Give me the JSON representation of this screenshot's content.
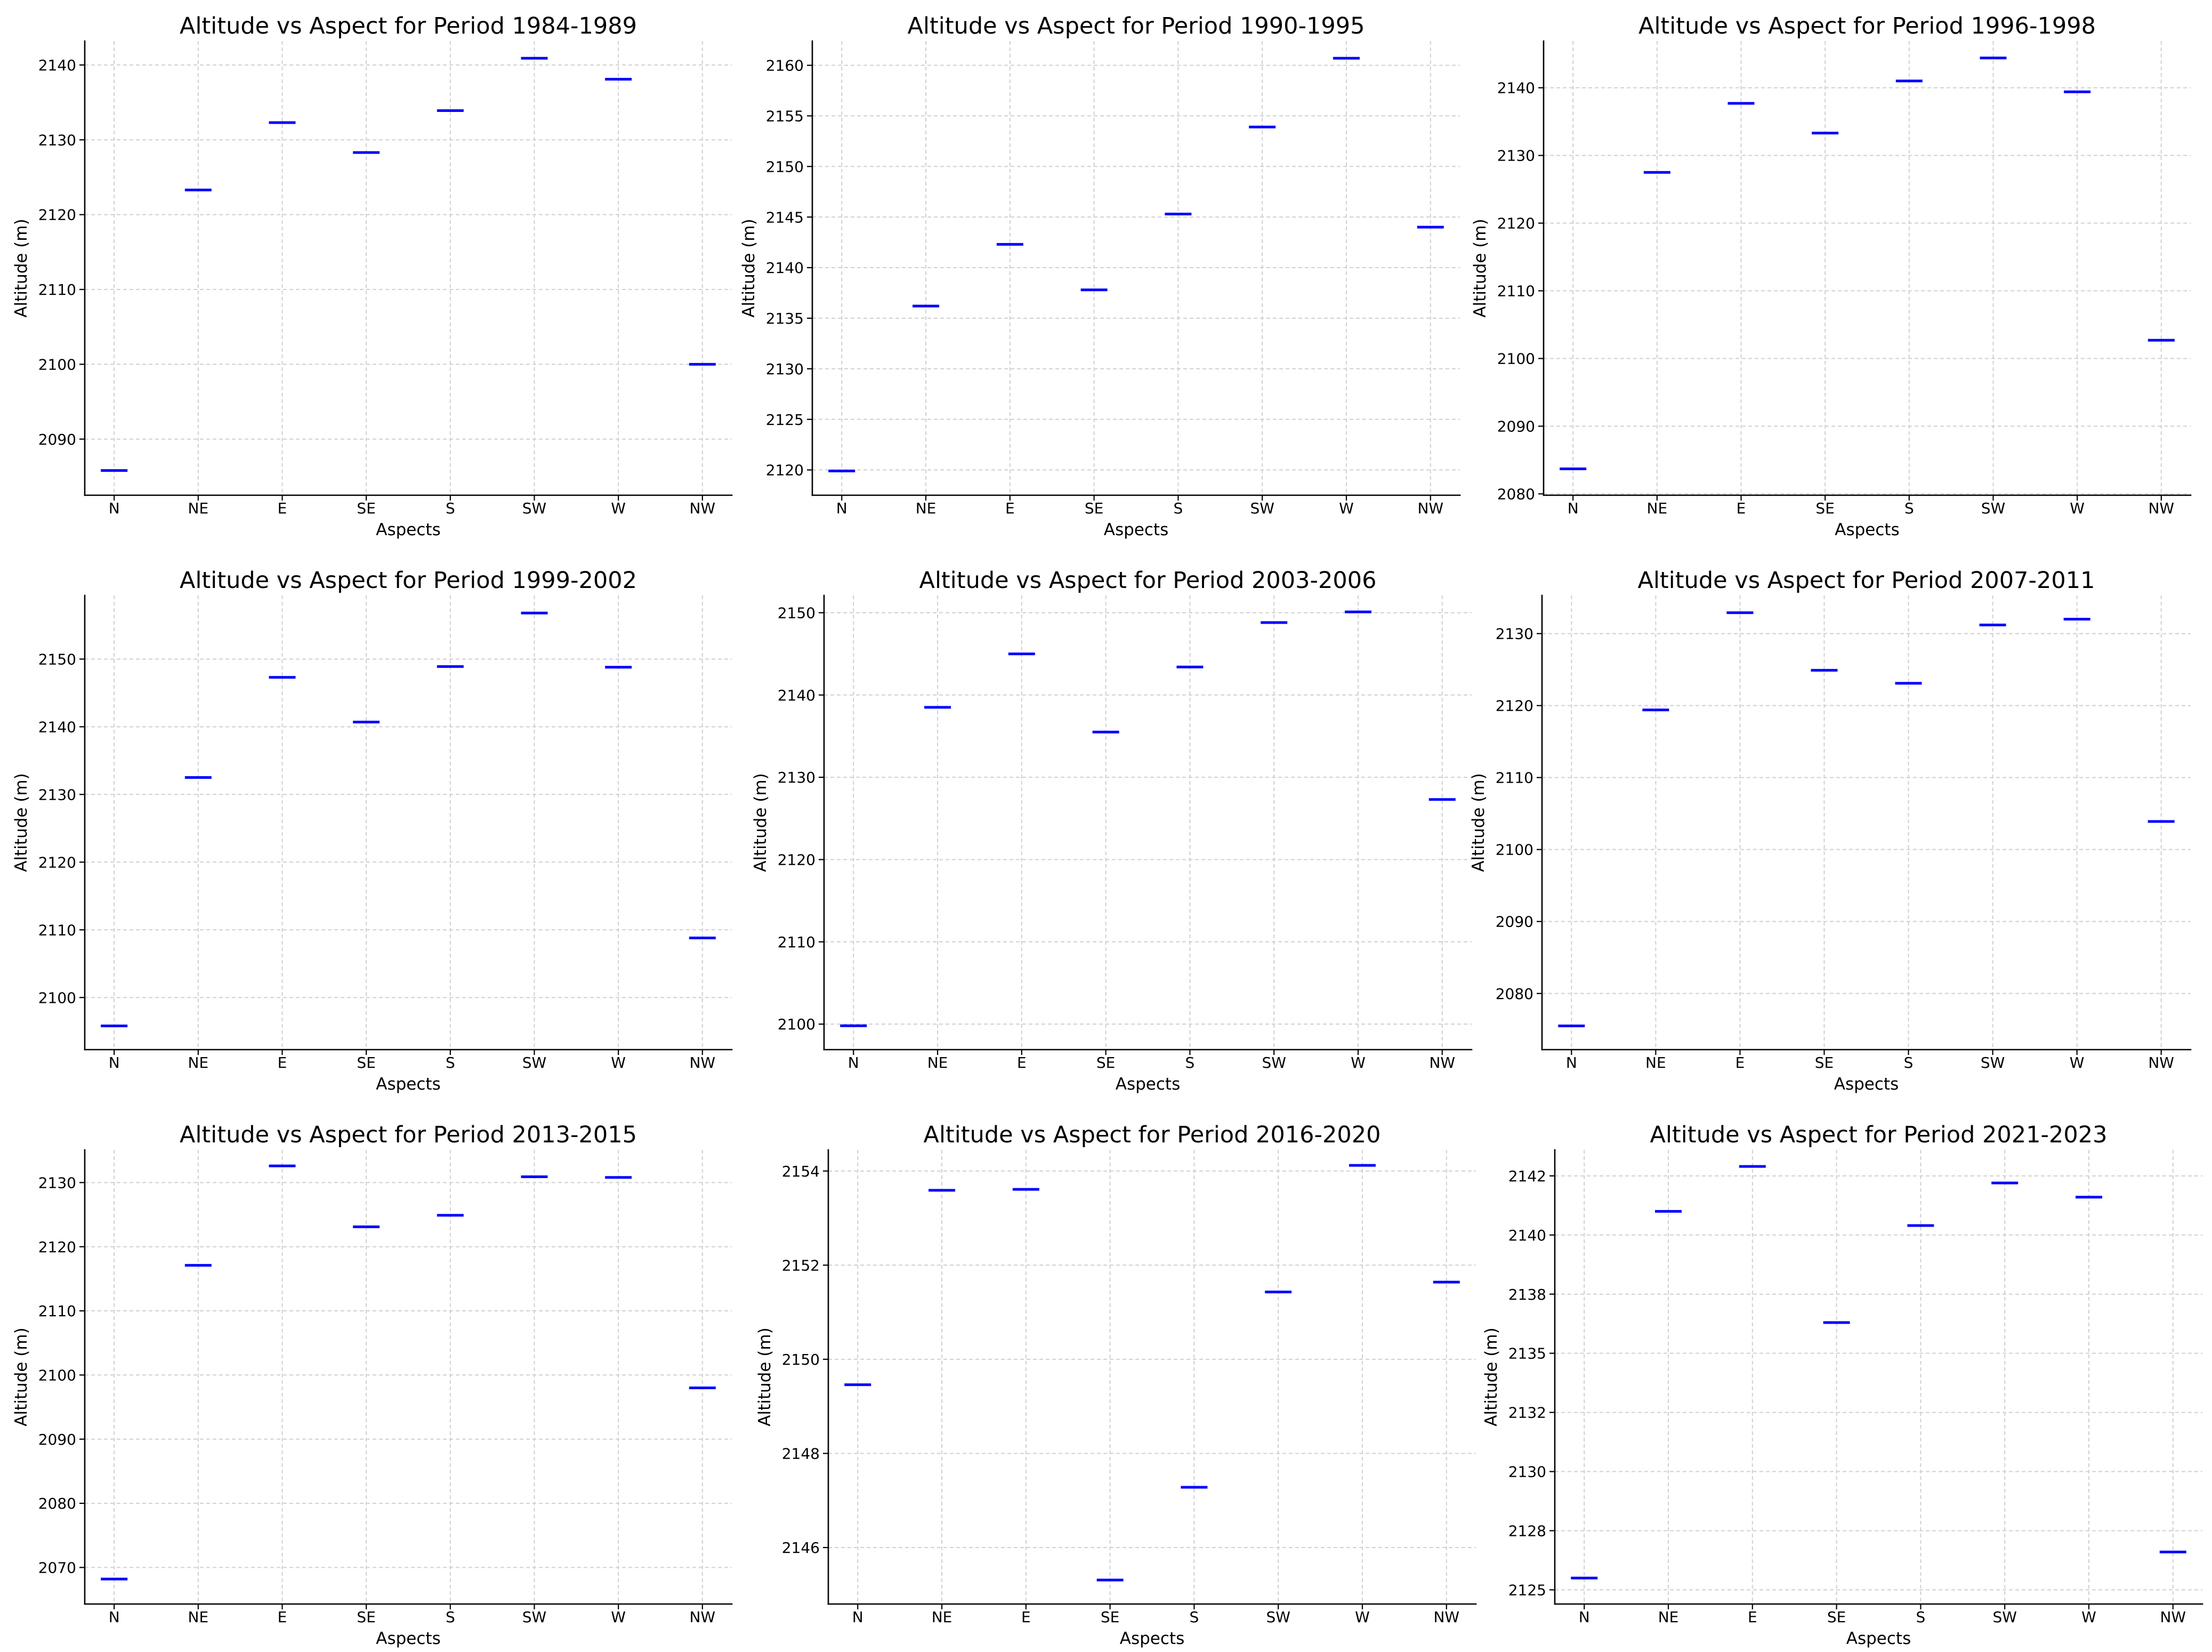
{
  "colors": {
    "marker": "#0000ff",
    "grid": "#d0d0d0",
    "axis": "#000000",
    "text": "#000000"
  },
  "chart_data": [
    {
      "type": "scatter",
      "title": "Altitude vs Aspect for Period 1984-1989",
      "xlabel": "Aspects",
      "ylabel": "Altitude (m)",
      "categories": [
        "N",
        "NE",
        "E",
        "SE",
        "S",
        "SW",
        "W",
        "NW"
      ],
      "values": [
        2085.8,
        2123.3,
        2132.3,
        2128.3,
        2133.9,
        2140.9,
        2138.1,
        2100.0
      ],
      "ylim": [
        2082.5,
        2143.2
      ],
      "yticks": [
        2090,
        2100,
        2110,
        2120,
        2130,
        2140
      ],
      "ytick_labels": [
        "2090",
        "2100",
        "2110",
        "2120",
        "2130",
        "2140"
      ],
      "grid": true
    },
    {
      "type": "scatter",
      "title": "Altitude vs Aspect for Period 1990-1995",
      "xlabel": "Aspects",
      "ylabel": "Altitude (m)",
      "categories": [
        "N",
        "NE",
        "E",
        "SE",
        "S",
        "SW",
        "W",
        "NW"
      ],
      "values": [
        2119.9,
        2136.2,
        2142.3,
        2137.8,
        2145.3,
        2153.9,
        2160.7,
        2144.0
      ],
      "ylim": [
        2117.5,
        2162.4
      ],
      "yticks": [
        2120,
        2125,
        2130,
        2135,
        2140,
        2145,
        2150,
        2155,
        2160
      ],
      "ytick_labels": [
        "2120",
        "2125",
        "2130",
        "2135",
        "2140",
        "2145",
        "2150",
        "2155",
        "2160"
      ],
      "grid": true
    },
    {
      "type": "scatter",
      "title": "Altitude vs Aspect for Period 1996-1998",
      "xlabel": "Aspects",
      "ylabel": "Altitude (m)",
      "categories": [
        "N",
        "NE",
        "E",
        "SE",
        "S",
        "SW",
        "W",
        "NW"
      ],
      "values": [
        2083.7,
        2127.5,
        2137.7,
        2133.3,
        2141.0,
        2144.4,
        2139.4,
        2102.7
      ],
      "ylim": [
        2079.8,
        2146.9
      ],
      "yticks": [
        2080,
        2090,
        2100,
        2110,
        2120,
        2130,
        2140
      ],
      "ytick_labels": [
        "2080",
        "2090",
        "2100",
        "2110",
        "2120",
        "2130",
        "2140"
      ],
      "grid": true
    },
    {
      "type": "scatter",
      "title": "Altitude vs Aspect for Period 1999-2002",
      "xlabel": "Aspects",
      "ylabel": "Altitude (m)",
      "categories": [
        "N",
        "NE",
        "E",
        "SE",
        "S",
        "SW",
        "W",
        "NW"
      ],
      "values": [
        2095.8,
        2132.5,
        2147.3,
        2140.7,
        2148.9,
        2156.8,
        2148.8,
        2108.8
      ],
      "ylim": [
        2092.3,
        2159.4
      ],
      "yticks": [
        2100,
        2110,
        2120,
        2130,
        2140,
        2150
      ],
      "ytick_labels": [
        "2100",
        "2110",
        "2120",
        "2130",
        "2140",
        "2150"
      ],
      "grid": true
    },
    {
      "type": "scatter",
      "title": "Altitude vs Aspect for Period 2003-2006",
      "xlabel": "Aspects",
      "ylabel": "Altitude (m)",
      "categories": [
        "N",
        "NE",
        "E",
        "SE",
        "S",
        "SW",
        "W",
        "NW"
      ],
      "values": [
        2099.8,
        2138.5,
        2145.0,
        2135.5,
        2143.4,
        2148.8,
        2150.1,
        2127.3
      ],
      "ylim": [
        2096.9,
        2152.1
      ],
      "yticks": [
        2100,
        2110,
        2120,
        2130,
        2140,
        2150
      ],
      "ytick_labels": [
        "2100",
        "2110",
        "2120",
        "2130",
        "2140",
        "2150"
      ],
      "grid": true
    },
    {
      "type": "scatter",
      "title": "Altitude vs Aspect for Period 2007-2011",
      "xlabel": "Aspects",
      "ylabel": "Altitude (m)",
      "categories": [
        "N",
        "NE",
        "E",
        "SE",
        "S",
        "SW",
        "W",
        "NW"
      ],
      "values": [
        2075.5,
        2119.4,
        2132.9,
        2124.9,
        2123.1,
        2131.2,
        2132.0,
        2103.9
      ],
      "ylim": [
        2072.2,
        2135.3
      ],
      "yticks": [
        2080,
        2090,
        2100,
        2110,
        2120,
        2130
      ],
      "ytick_labels": [
        "2080",
        "2090",
        "2100",
        "2110",
        "2120",
        "2130"
      ],
      "grid": true
    },
    {
      "type": "scatter",
      "title": "Altitude vs Aspect for Period 2013-2015",
      "xlabel": "Aspects",
      "ylabel": "Altitude (m)",
      "categories": [
        "N",
        "NE",
        "E",
        "SE",
        "S",
        "SW",
        "W",
        "NW"
      ],
      "values": [
        2068.2,
        2117.1,
        2132.6,
        2123.1,
        2124.9,
        2130.9,
        2130.8,
        2098.0
      ],
      "ylim": [
        2064.3,
        2135.1
      ],
      "yticks": [
        2070,
        2080,
        2090,
        2100,
        2110,
        2120,
        2130
      ],
      "ytick_labels": [
        "2070",
        "2080",
        "2090",
        "2100",
        "2110",
        "2120",
        "2130"
      ],
      "grid": true
    },
    {
      "type": "scatter",
      "title": "Altitude vs Aspect for Period 2016-2020",
      "xlabel": "Aspects",
      "ylabel": "Altitude (m)",
      "categories": [
        "N",
        "NE",
        "E",
        "SE",
        "S",
        "SW",
        "W",
        "NW"
      ],
      "values": [
        2149.46,
        2153.59,
        2153.61,
        2145.31,
        2147.28,
        2151.43,
        2154.12,
        2151.64
      ],
      "ylim": [
        2144.8,
        2154.45
      ],
      "yticks": [
        2146,
        2148,
        2150,
        2152,
        2154
      ],
      "ytick_labels": [
        "2146",
        "2148",
        "2150",
        "2152",
        "2154"
      ],
      "grid": true
    },
    {
      "type": "scatter",
      "title": "Altitude vs Aspect for Period 2021-2023",
      "xlabel": "Aspects",
      "ylabel": "Altitude (m)",
      "categories": [
        "N",
        "NE",
        "E",
        "SE",
        "S",
        "SW",
        "W",
        "NW"
      ],
      "values": [
        2125.5,
        2141.0,
        2142.9,
        2136.3,
        2140.4,
        2142.2,
        2141.6,
        2126.6
      ],
      "ylim": [
        2124.4,
        2143.6
      ],
      "yticks": [
        2125,
        2127.5,
        2130,
        2132.5,
        2135,
        2137.5,
        2140,
        2142.5
      ],
      "ytick_labels": [
        "2125",
        "2128",
        "2130",
        "2132",
        "2135",
        "2138",
        "2140",
        "2142"
      ],
      "grid": true
    }
  ]
}
